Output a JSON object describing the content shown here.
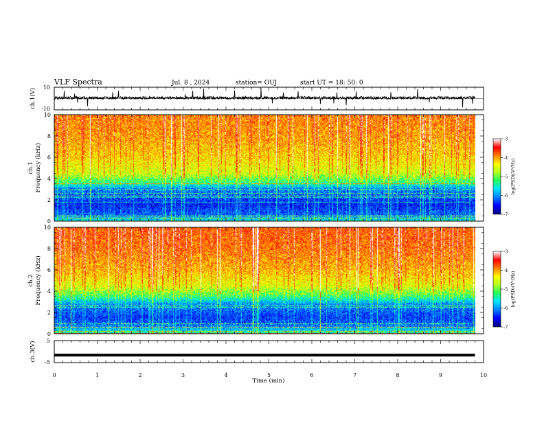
{
  "header": {
    "title": "VLF Spectra",
    "date": "Jul. 8 , 2024",
    "station": "station= OUJ",
    "start": "start UT = 18: 50: 0"
  },
  "chart_data": [
    {
      "type": "line",
      "name": "ch1-waveform",
      "ylabel": "ch.1(V)",
      "ylim": [
        -10,
        10
      ],
      "yticks": [
        "10",
        "-10"
      ],
      "xlim": [
        0,
        10
      ],
      "baseline_v": 0.6,
      "noise_amplitude_v": 1.2,
      "trace_end_min": 9.8
    },
    {
      "type": "heatmap",
      "name": "ch1-spectrogram",
      "ylabel_channel": "ch.1",
      "ylabel": "Frequency (kHz)",
      "ylim": [
        0,
        10
      ],
      "yticks": [
        "0",
        "2",
        "4",
        "6",
        "8",
        "10"
      ],
      "xlim": [
        0,
        10
      ],
      "data_end_min": 9.8,
      "value_range_log_psd": [
        -7,
        -3
      ],
      "profile": [
        {
          "f_khz": 0.0,
          "level": -5.6
        },
        {
          "f_khz": 0.5,
          "level": -6.2
        },
        {
          "f_khz": 1.5,
          "level": -6.5
        },
        {
          "f_khz": 3.0,
          "level": -6.1
        },
        {
          "f_khz": 3.6,
          "level": -5.3
        },
        {
          "f_khz": 4.5,
          "level": -4.6
        },
        {
          "f_khz": 6.0,
          "level": -4.25
        },
        {
          "f_khz": 8.0,
          "level": -4.0
        },
        {
          "f_khz": 10.0,
          "level": -3.9
        }
      ],
      "colorbar": {
        "label": "log(PSD)(V²/Hz)",
        "ticks": [
          "-3",
          "-4",
          "-5",
          "-6",
          "-7"
        ],
        "range": [
          -7,
          -3
        ]
      }
    },
    {
      "type": "heatmap",
      "name": "ch2-spectrogram",
      "ylabel_channel": "ch.2",
      "ylabel": "Frequency (kHz)",
      "ylim": [
        0,
        10
      ],
      "yticks": [
        "0",
        "2",
        "4",
        "6",
        "8",
        "10"
      ],
      "xlim": [
        0,
        10
      ],
      "data_end_min": 9.8,
      "value_range_log_psd": [
        -7,
        -3
      ],
      "profile": [
        {
          "f_khz": 0.0,
          "level": -5.4
        },
        {
          "f_khz": 0.6,
          "level": -6.1
        },
        {
          "f_khz": 1.5,
          "level": -6.4
        },
        {
          "f_khz": 2.8,
          "level": -6.0
        },
        {
          "f_khz": 3.5,
          "level": -5.2
        },
        {
          "f_khz": 4.5,
          "level": -4.5
        },
        {
          "f_khz": 6.0,
          "level": -4.1
        },
        {
          "f_khz": 8.0,
          "level": -3.85
        },
        {
          "f_khz": 10.0,
          "level": -3.75
        }
      ],
      "colorbar": {
        "label": "log(PSD)(V²/Hz)",
        "ticks": [
          "-3",
          "-4",
          "-5",
          "-6",
          "-7"
        ],
        "range": [
          -7,
          -3
        ]
      }
    },
    {
      "type": "line",
      "name": "ch3-waveform",
      "ylabel": "ch.3(V)",
      "ylim": [
        -5,
        5
      ],
      "yticks": [
        "5",
        "-5"
      ],
      "xlim": [
        0,
        10
      ],
      "baseline_v": -1.6,
      "trace_end_min": 9.8
    }
  ],
  "time_axis": {
    "label": "Time (min)",
    "ticks": [
      "0",
      "1",
      "2",
      "3",
      "4",
      "5",
      "6",
      "7",
      "8",
      "9",
      "10"
    ]
  },
  "colors": {
    "colormap": [
      "#000080",
      "#0000ff",
      "#0080ff",
      "#00e5ff",
      "#20ff60",
      "#b0ff20",
      "#ffff00",
      "#ff8000",
      "#ff0000",
      "#ffffff"
    ],
    "trace": "#000000",
    "frame": "#000000"
  }
}
